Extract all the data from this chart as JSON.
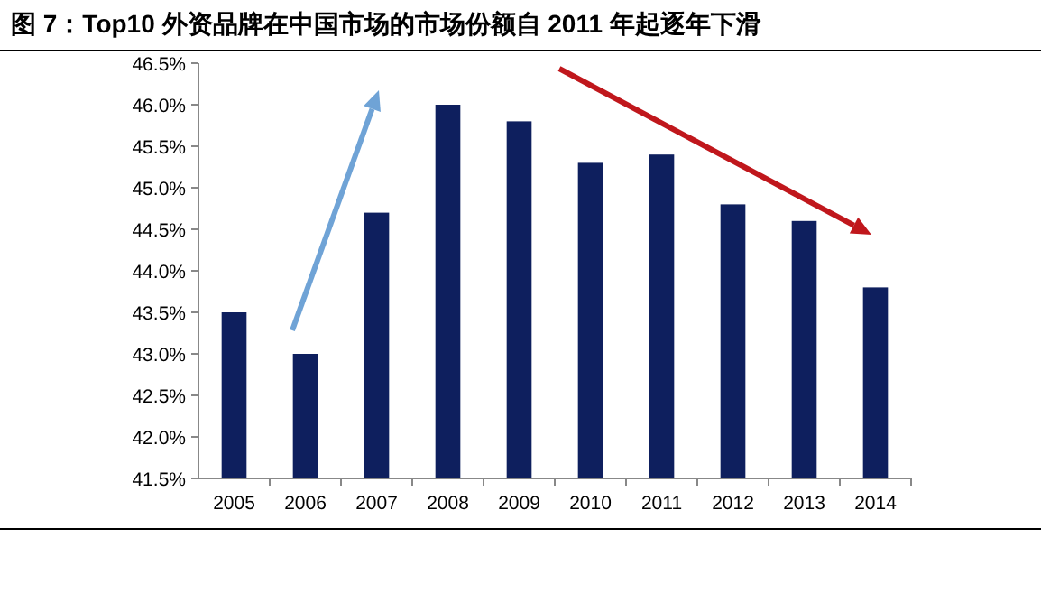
{
  "chart_data": {
    "type": "bar",
    "title": "图 7：Top10 外资品牌在中国市场的市场份额自 2011 年起逐年下滑",
    "categories": [
      "2005",
      "2006",
      "2007",
      "2008",
      "2009",
      "2010",
      "2011",
      "2012",
      "2013",
      "2014"
    ],
    "values": [
      43.5,
      43.0,
      44.7,
      46.0,
      45.8,
      45.3,
      45.4,
      44.8,
      44.6,
      43.8
    ],
    "color": "#0e1f5e",
    "ylim": [
      41.5,
      46.5
    ],
    "yticks": [
      {
        "value": 41.5,
        "label": "41.5%"
      },
      {
        "value": 42.0,
        "label": "42.0%"
      },
      {
        "value": 42.5,
        "label": "42.5%"
      },
      {
        "value": 43.0,
        "label": "43.0%"
      },
      {
        "value": 43.5,
        "label": "43.5%"
      },
      {
        "value": 44.0,
        "label": "44.0%"
      },
      {
        "value": 44.5,
        "label": "44.5%"
      },
      {
        "value": 45.0,
        "label": "45.0%"
      },
      {
        "value": 45.5,
        "label": "45.5%"
      },
      {
        "value": 46.0,
        "label": "46.0%"
      },
      {
        "value": 46.5,
        "label": "46.5%"
      }
    ],
    "grid": false
  }
}
